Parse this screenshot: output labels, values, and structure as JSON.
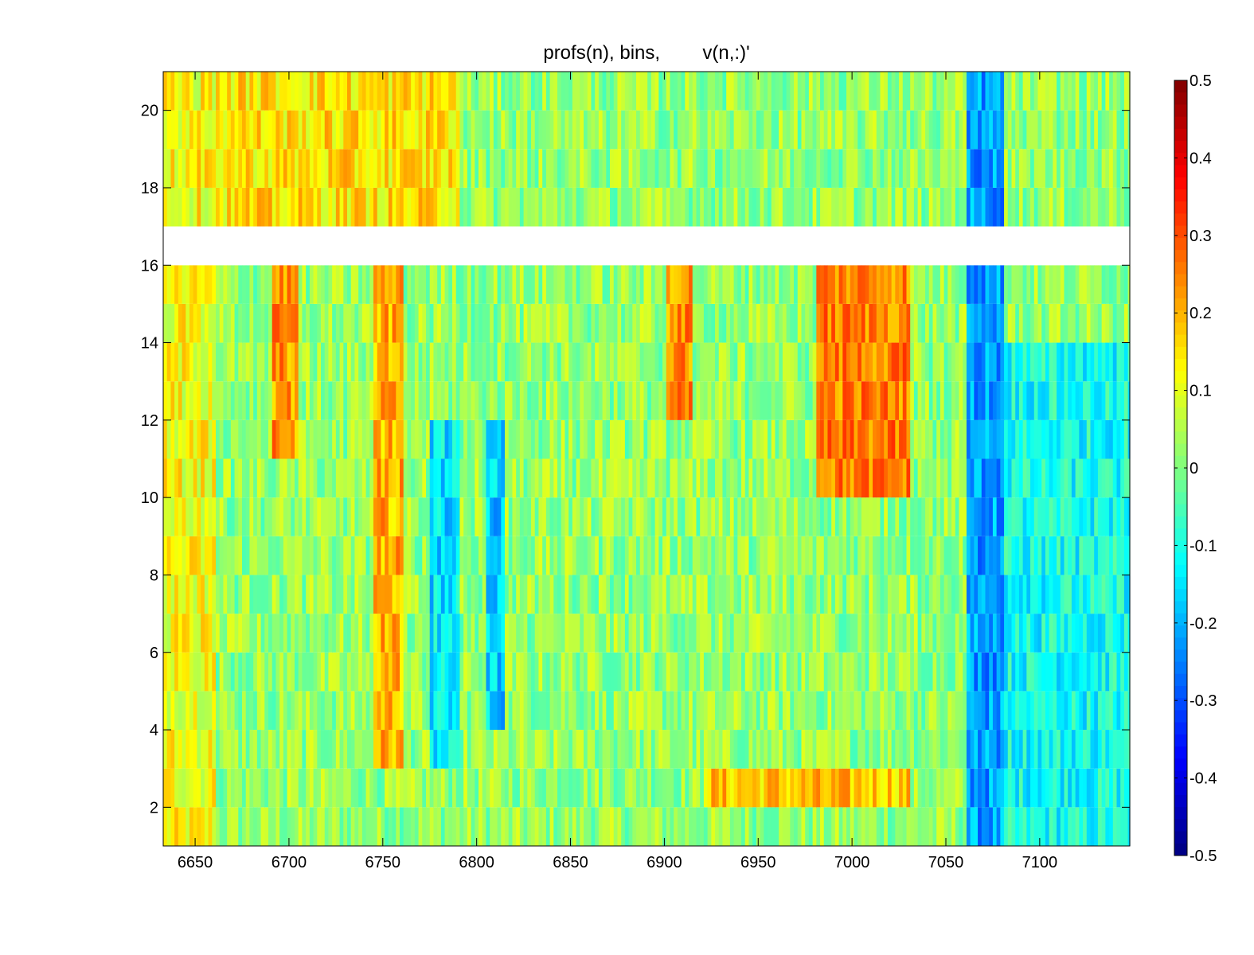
{
  "chart_data": {
    "type": "heatmap",
    "title": "profs(n), bins,        v(n,:)'",
    "xlabel": "",
    "ylabel": "",
    "xlim": [
      6633,
      7148
    ],
    "ylim": [
      1,
      21
    ],
    "xticks": [
      6650,
      6700,
      6750,
      6800,
      6850,
      6900,
      6950,
      7000,
      7050,
      7100
    ],
    "yticks": [
      2,
      4,
      6,
      8,
      10,
      12,
      14,
      16,
      18,
      20
    ],
    "x_label_texts": [
      "6650",
      "6700",
      "6750",
      "6800",
      "6850",
      "6900",
      "6950",
      "7000",
      "7050",
      "7100"
    ],
    "y_label_texts": [
      "2",
      "4",
      "6",
      "8",
      "10",
      "12",
      "14",
      "16",
      "18",
      "20"
    ],
    "colormap": "jet",
    "clim": [
      -0.5,
      0.5
    ],
    "colorbar": {
      "ticks": [
        0.5,
        0.4,
        0.3,
        0.2,
        0.1,
        0,
        -0.1,
        -0.2,
        -0.3,
        -0.4,
        -0.5
      ],
      "labels": [
        "0.5",
        "0.4",
        "0.3",
        "0.2",
        "0.1",
        "0",
        "-0.1",
        "-0.2",
        "-0.3",
        "-0.4",
        "-0.5"
      ],
      "placement": "right"
    },
    "grid": false,
    "missing_rows": [
      16
    ],
    "row_edges": [
      1,
      2,
      3,
      4,
      5,
      6,
      7,
      8,
      9,
      10,
      11,
      12,
      13,
      14,
      15,
      16,
      17,
      18,
      19,
      20,
      21
    ],
    "column_bin_width": 2,
    "regional_mean_values": [
      {
        "x_range": [
          6633,
          6660
        ],
        "y_range": [
          1,
          21
        ],
        "value": 0.09
      },
      {
        "x_range": [
          6690,
          6705
        ],
        "y_range": [
          11,
          16
        ],
        "value": 0.2
      },
      {
        "x_range": [
          6745,
          6760
        ],
        "y_range": [
          3,
          16
        ],
        "value": 0.17
      },
      {
        "x_range": [
          6775,
          6790
        ],
        "y_range": [
          3,
          12
        ],
        "value": -0.18
      },
      {
        "x_range": [
          6805,
          6815
        ],
        "y_range": [
          4,
          12
        ],
        "value": -0.2
      },
      {
        "x_range": [
          6900,
          6915
        ],
        "y_range": [
          12,
          16
        ],
        "value": 0.2
      },
      {
        "x_range": [
          6980,
          7030
        ],
        "y_range": [
          10,
          16
        ],
        "value": 0.22
      },
      {
        "x_range": [
          7060,
          7080
        ],
        "y_range": [
          1,
          21
        ],
        "value": -0.25
      },
      {
        "x_range": [
          7080,
          7148
        ],
        "y_range": [
          1,
          14
        ],
        "value": -0.14
      },
      {
        "x_range": [
          6633,
          6790
        ],
        "y_range": [
          17,
          21
        ],
        "value": 0.12
      },
      {
        "x_range": [
          6920,
          7030
        ],
        "y_range": [
          2,
          3
        ],
        "value": 0.15
      }
    ]
  },
  "colors": {
    "background": "#ffffff",
    "axis": "#000000",
    "missing": "#ffffff"
  }
}
